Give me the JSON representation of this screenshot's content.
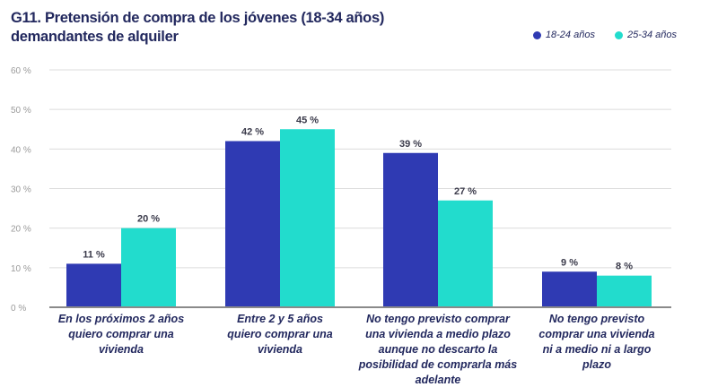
{
  "chart_data": {
    "type": "bar",
    "title": "G11. Pretensión de compra de los jóvenes (18-34 años) demandantes de alquiler",
    "title_lines": [
      "G11. Pretensión de compra de los jóvenes (18-34 años)",
      "demandantes de alquiler"
    ],
    "categories": [
      "En los próximos 2 años quiero comprar una vivienda",
      "Entre 2 y 5 años quiero comprar una vivienda",
      "No tengo previsto comprar una vivienda a medio plazo aunque no descarto la posibilidad de comprarla más adelante",
      "No tengo previsto comprar una vivienda ni a medio ni a largo plazo"
    ],
    "series": [
      {
        "name": "18-24 años",
        "color": "#2f3ab3",
        "values": [
          11,
          42,
          39,
          9
        ],
        "labels": [
          "11 %",
          "42 %",
          "39 %",
          "9 %"
        ]
      },
      {
        "name": "25-34 años",
        "color": "#22dccd",
        "values": [
          20,
          45,
          27,
          8
        ],
        "labels": [
          "20 %",
          "45 %",
          "27 %",
          "8 %"
        ]
      }
    ],
    "yticks": [
      0,
      10,
      20,
      30,
      40,
      50,
      60
    ],
    "ytick_labels": [
      "0 %",
      "10 %",
      "20 %",
      "30 %",
      "40 %",
      "50 %",
      "60 %"
    ],
    "ylim": [
      0,
      60
    ],
    "xlabel": "",
    "ylabel": "",
    "grid": true,
    "legend_position": "top-right"
  }
}
